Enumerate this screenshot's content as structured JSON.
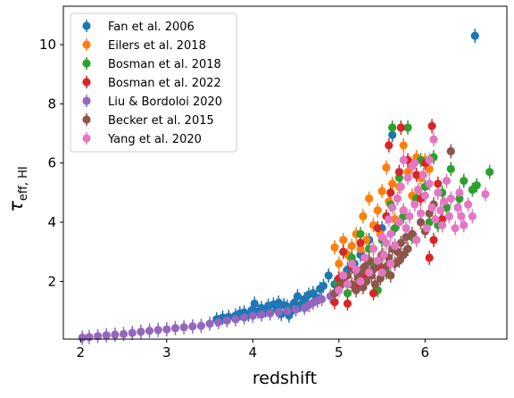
{
  "chart_data": {
    "type": "scatter",
    "title": "",
    "xlabel": "redshift",
    "ylabel_main": "τ",
    "ylabel_sub": "eff, HI",
    "xlim": [
      1.8,
      6.95
    ],
    "ylim": [
      0.05,
      11.3
    ],
    "xticks": [
      2,
      3,
      4,
      5,
      6
    ],
    "yticks": [
      2,
      4,
      6,
      8,
      10
    ],
    "grid": false,
    "legend_position": "top-left",
    "series": [
      {
        "name": "Fan et al. 2006",
        "color": "#1f77b4",
        "points": [
          [
            3.58,
            0.72
          ],
          [
            3.65,
            0.78
          ],
          [
            3.72,
            0.8
          ],
          [
            3.8,
            0.85
          ],
          [
            3.85,
            0.92
          ],
          [
            3.9,
            0.95
          ],
          [
            3.95,
            0.88
          ],
          [
            4.0,
            1.05
          ],
          [
            4.02,
            1.25
          ],
          [
            4.06,
            0.98
          ],
          [
            4.1,
            1.1
          ],
          [
            4.15,
            1.02
          ],
          [
            4.18,
            1.18
          ],
          [
            4.2,
            0.95
          ],
          [
            4.24,
            1.22
          ],
          [
            4.28,
            1.05
          ],
          [
            4.3,
            1.28
          ],
          [
            4.33,
            0.9
          ],
          [
            4.36,
            1.2
          ],
          [
            4.4,
            1.15
          ],
          [
            4.42,
            0.85
          ],
          [
            4.45,
            1.0
          ],
          [
            4.48,
            1.28
          ],
          [
            4.52,
            1.5
          ],
          [
            4.55,
            1.2
          ],
          [
            4.6,
            1.4
          ],
          [
            4.65,
            1.55
          ],
          [
            4.7,
            1.6
          ],
          [
            4.74,
            1.45
          ],
          [
            4.78,
            1.75
          ],
          [
            4.82,
            1.85
          ],
          [
            4.88,
            2.2
          ],
          [
            4.95,
            1.9
          ],
          [
            5.05,
            2.05
          ],
          [
            5.1,
            2.4
          ],
          [
            5.18,
            2.6
          ],
          [
            5.25,
            2.9
          ],
          [
            5.35,
            3.4
          ],
          [
            5.5,
            3.8
          ],
          [
            5.62,
            6.95
          ],
          [
            6.58,
            10.3
          ]
        ]
      },
      {
        "name": "Eilers et al. 2018",
        "color": "#ff7f0e",
        "points": [
          [
            4.95,
            3.15
          ],
          [
            5.0,
            2.6
          ],
          [
            5.05,
            3.4
          ],
          [
            5.1,
            2.9
          ],
          [
            5.15,
            3.2
          ],
          [
            5.2,
            3.6
          ],
          [
            5.25,
            3.1
          ],
          [
            5.28,
            4.2
          ],
          [
            5.32,
            3.4
          ],
          [
            5.35,
            4.8
          ],
          [
            5.4,
            3.9
          ],
          [
            5.45,
            4.4
          ],
          [
            5.5,
            5.05
          ],
          [
            5.55,
            5.85
          ],
          [
            5.58,
            4.7
          ],
          [
            5.62,
            5.3
          ],
          [
            5.65,
            4.1
          ],
          [
            5.7,
            5.2
          ],
          [
            5.75,
            6.6
          ],
          [
            5.8,
            5.7
          ],
          [
            5.85,
            4.9
          ],
          [
            5.9,
            6.2
          ],
          [
            5.95,
            5.5
          ],
          [
            6.0,
            6.1
          ],
          [
            6.05,
            5.8
          ],
          [
            5.3,
            2.8
          ],
          [
            5.4,
            3.1
          ],
          [
            5.48,
            3.6
          ]
        ]
      },
      {
        "name": "Bosman et al. 2018",
        "color": "#2ca02c",
        "points": [
          [
            4.98,
            1.9
          ],
          [
            5.05,
            2.2
          ],
          [
            5.1,
            1.6
          ],
          [
            5.15,
            2.8
          ],
          [
            5.2,
            2.4
          ],
          [
            5.25,
            3.6
          ],
          [
            5.3,
            2.0
          ],
          [
            5.35,
            3.1
          ],
          [
            5.4,
            2.6
          ],
          [
            5.45,
            1.7
          ],
          [
            5.5,
            3.4
          ],
          [
            5.55,
            2.3
          ],
          [
            5.6,
            4.6
          ],
          [
            5.62,
            7.2
          ],
          [
            5.65,
            3.8
          ],
          [
            5.7,
            5.5
          ],
          [
            5.75,
            4.2
          ],
          [
            5.8,
            7.2
          ],
          [
            5.85,
            3.5
          ],
          [
            5.9,
            4.8
          ],
          [
            5.95,
            6.1
          ],
          [
            6.0,
            5.2
          ],
          [
            6.05,
            4.0
          ],
          [
            6.1,
            6.2
          ],
          [
            6.15,
            3.9
          ],
          [
            6.2,
            5.0
          ],
          [
            6.25,
            4.5
          ],
          [
            6.3,
            5.8
          ],
          [
            6.4,
            4.8
          ],
          [
            6.45,
            5.4
          ],
          [
            6.55,
            5.1
          ],
          [
            6.6,
            5.25
          ],
          [
            6.75,
            5.7
          ]
        ]
      },
      {
        "name": "Bosman et al. 2022",
        "color": "#d62728",
        "points": [
          [
            4.95,
            1.3
          ],
          [
            5.0,
            2.1
          ],
          [
            5.05,
            3.0
          ],
          [
            5.1,
            1.25
          ],
          [
            5.15,
            2.5
          ],
          [
            5.2,
            1.8
          ],
          [
            5.25,
            3.3
          ],
          [
            5.3,
            2.2
          ],
          [
            5.35,
            2.7
          ],
          [
            5.4,
            1.6
          ],
          [
            5.45,
            3.8
          ],
          [
            5.5,
            2.4
          ],
          [
            5.55,
            4.2
          ],
          [
            5.58,
            6.6
          ],
          [
            5.6,
            5.0
          ],
          [
            5.65,
            3.2
          ],
          [
            5.7,
            5.7
          ],
          [
            5.72,
            7.2
          ],
          [
            5.75,
            4.4
          ],
          [
            5.8,
            6.1
          ],
          [
            5.85,
            3.6
          ],
          [
            5.9,
            5.6
          ],
          [
            5.95,
            4.8
          ],
          [
            6.0,
            6.0
          ],
          [
            6.05,
            2.8
          ],
          [
            6.08,
            7.25
          ],
          [
            6.1,
            3.4
          ],
          [
            6.15,
            5.3
          ],
          [
            6.2,
            4.1
          ]
        ]
      },
      {
        "name": "Liu & Bordoloi 2020",
        "color": "#9467bd",
        "points": [
          [
            2.02,
            0.1
          ],
          [
            2.1,
            0.12
          ],
          [
            2.2,
            0.15
          ],
          [
            2.3,
            0.18
          ],
          [
            2.4,
            0.2
          ],
          [
            2.5,
            0.22
          ],
          [
            2.6,
            0.26
          ],
          [
            2.7,
            0.3
          ],
          [
            2.8,
            0.33
          ],
          [
            2.9,
            0.36
          ],
          [
            3.0,
            0.38
          ],
          [
            3.1,
            0.42
          ],
          [
            3.2,
            0.45
          ],
          [
            3.3,
            0.48
          ],
          [
            3.4,
            0.5
          ],
          [
            3.5,
            0.57
          ],
          [
            3.6,
            0.62
          ],
          [
            3.7,
            0.68
          ],
          [
            3.8,
            0.72
          ],
          [
            3.9,
            0.78
          ],
          [
            4.0,
            0.84
          ],
          [
            4.1,
            0.88
          ],
          [
            4.2,
            0.92
          ],
          [
            4.3,
            0.96
          ],
          [
            4.4,
            1.0
          ],
          [
            4.5,
            1.05
          ],
          [
            4.6,
            1.1
          ],
          [
            4.65,
            1.2
          ],
          [
            4.7,
            1.28
          ],
          [
            4.75,
            1.35
          ],
          [
            4.8,
            1.4
          ],
          [
            4.9,
            1.5
          ]
        ]
      },
      {
        "name": "Becker et al. 2015",
        "color": "#8c564b",
        "points": [
          [
            4.95,
            1.6
          ],
          [
            5.0,
            1.8
          ],
          [
            5.05,
            2.0
          ],
          [
            5.1,
            2.2
          ],
          [
            5.15,
            1.9
          ],
          [
            5.18,
            2.4
          ],
          [
            5.2,
            1.7
          ],
          [
            5.22,
            2.1
          ],
          [
            5.25,
            2.3
          ],
          [
            5.28,
            1.8
          ],
          [
            5.3,
            2.5
          ],
          [
            5.32,
            2.0
          ],
          [
            5.35,
            2.7
          ],
          [
            5.38,
            2.2
          ],
          [
            5.4,
            2.4
          ],
          [
            5.42,
            1.9
          ],
          [
            5.45,
            2.6
          ],
          [
            5.48,
            2.1
          ],
          [
            5.5,
            2.9
          ],
          [
            5.52,
            2.3
          ],
          [
            5.55,
            2.5
          ],
          [
            5.58,
            2.8
          ],
          [
            5.6,
            2.2
          ],
          [
            5.62,
            3.1
          ],
          [
            5.65,
            2.6
          ],
          [
            5.68,
            3.0
          ],
          [
            5.7,
            2.7
          ],
          [
            5.72,
            3.3
          ],
          [
            5.75,
            2.9
          ],
          [
            5.78,
            3.5
          ],
          [
            5.8,
            3.1
          ],
          [
            5.85,
            3.6
          ],
          [
            5.9,
            3.4
          ],
          [
            5.95,
            4.0
          ],
          [
            6.0,
            3.7
          ],
          [
            6.05,
            4.3
          ],
          [
            6.1,
            4.6
          ],
          [
            6.3,
            6.4
          ]
        ]
      },
      {
        "name": "Yang et al. 2020",
        "color": "#e377c2",
        "points": [
          [
            5.0,
            1.7
          ],
          [
            5.05,
            2.2
          ],
          [
            5.1,
            1.9
          ],
          [
            5.15,
            2.6
          ],
          [
            5.2,
            2.4
          ],
          [
            5.25,
            2.0
          ],
          [
            5.3,
            2.8
          ],
          [
            5.35,
            2.3
          ],
          [
            5.4,
            3.1
          ],
          [
            5.45,
            2.7
          ],
          [
            5.5,
            3.5
          ],
          [
            5.52,
            2.9
          ],
          [
            5.55,
            3.3
          ],
          [
            5.58,
            4.1
          ],
          [
            5.6,
            3.6
          ],
          [
            5.62,
            4.5
          ],
          [
            5.65,
            3.2
          ],
          [
            5.68,
            4.8
          ],
          [
            5.7,
            4.0
          ],
          [
            5.72,
            5.2
          ],
          [
            5.75,
            4.4
          ],
          [
            5.78,
            3.8
          ],
          [
            5.8,
            5.5
          ],
          [
            5.82,
            4.2
          ],
          [
            5.85,
            5.9
          ],
          [
            5.88,
            4.6
          ],
          [
            5.9,
            3.4
          ],
          [
            5.92,
            5.1
          ],
          [
            5.95,
            4.3
          ],
          [
            5.98,
            5.6
          ],
          [
            6.0,
            4.9
          ],
          [
            6.02,
            3.8
          ],
          [
            6.05,
            5.3
          ],
          [
            6.08,
            4.5
          ],
          [
            6.1,
            6.8
          ],
          [
            6.12,
            4.1
          ],
          [
            6.15,
            5.0
          ],
          [
            6.18,
            4.4
          ],
          [
            6.2,
            3.9
          ],
          [
            6.22,
            4.7
          ],
          [
            6.25,
            5.4
          ],
          [
            6.28,
            4.2
          ],
          [
            6.3,
            4.8
          ],
          [
            6.35,
            3.8
          ],
          [
            6.38,
            4.5
          ],
          [
            6.4,
            5.0
          ],
          [
            6.42,
            4.2
          ],
          [
            6.45,
            3.9
          ],
          [
            6.5,
            4.6
          ],
          [
            6.55,
            4.2
          ],
          [
            6.7,
            4.95
          ],
          [
            5.75,
            6.1
          ],
          [
            5.88,
            6.0
          ],
          [
            6.05,
            6.1
          ],
          [
            5.5,
            2.3
          ],
          [
            5.6,
            2.6
          ]
        ]
      }
    ]
  }
}
